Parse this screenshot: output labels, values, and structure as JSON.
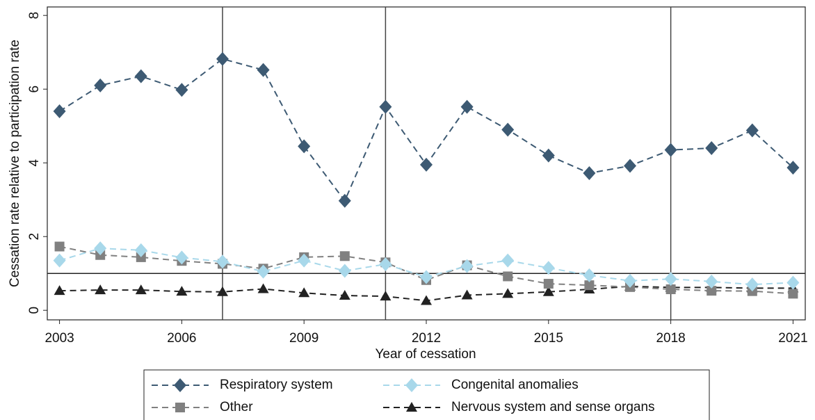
{
  "chart_data": {
    "type": "line",
    "x_label": "Year of cessation",
    "y_label": "Cessation rate relative to participation rate",
    "x": [
      2003,
      2004,
      2005,
      2006,
      2007,
      2008,
      2009,
      2010,
      2011,
      2012,
      2013,
      2014,
      2015,
      2016,
      2017,
      2018,
      2019,
      2020,
      2021
    ],
    "series": [
      {
        "name": "Respiratory system",
        "color": "#3d5a73",
        "marker": "diamond",
        "values": [
          5.4,
          6.1,
          6.35,
          5.98,
          6.82,
          6.52,
          4.45,
          2.97,
          5.52,
          3.95,
          5.52,
          4.9,
          4.2,
          3.72,
          3.92,
          4.35,
          4.4,
          4.88,
          3.87
        ]
      },
      {
        "name": "Congenital anomalies",
        "color": "#a8d8ea",
        "marker": "diamond",
        "values": [
          1.35,
          1.68,
          1.63,
          1.43,
          1.32,
          1.05,
          1.35,
          1.07,
          1.25,
          0.9,
          1.2,
          1.35,
          1.15,
          0.95,
          0.8,
          0.85,
          0.78,
          0.7,
          0.75
        ]
      },
      {
        "name": "Other",
        "color": "#808080",
        "marker": "square",
        "values": [
          1.73,
          1.5,
          1.44,
          1.34,
          1.26,
          1.13,
          1.44,
          1.47,
          1.3,
          0.82,
          1.22,
          0.92,
          0.72,
          0.68,
          0.63,
          0.57,
          0.53,
          0.52,
          0.45
        ]
      },
      {
        "name": "Nervous system and sense organs",
        "color": "#222222",
        "marker": "triangle",
        "values": [
          0.53,
          0.55,
          0.55,
          0.51,
          0.5,
          0.58,
          0.47,
          0.4,
          0.38,
          0.26,
          0.41,
          0.45,
          0.5,
          0.57,
          0.65,
          0.62,
          0.62,
          0.6,
          0.6
        ]
      }
    ],
    "xlim": [
      2002.7,
      2021.3
    ],
    "ylim": [
      -0.26,
      8.23
    ],
    "xticks": [
      2003,
      2006,
      2009,
      2012,
      2015,
      2018,
      2021
    ],
    "yticks": [
      0,
      2,
      4,
      6,
      8
    ],
    "reference_lines": {
      "x": [
        2007,
        2011,
        2018
      ],
      "y": [
        1
      ]
    },
    "legend_position": "bottom"
  }
}
